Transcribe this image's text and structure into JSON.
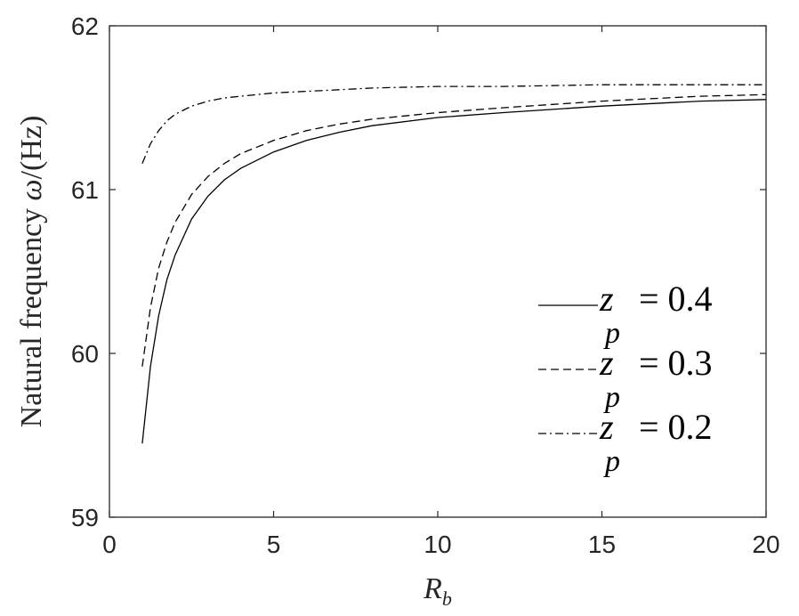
{
  "chart_data": {
    "type": "line",
    "xlabel": "R_b",
    "xlabel_main": "R",
    "xlabel_sub": "b",
    "ylabel": "Natural frequency ω/(Hz)",
    "ylabel_main": "Natural frequency ",
    "ylabel_symbol": "ω",
    "ylabel_unit": "/(Hz)",
    "xlim": [
      0,
      20
    ],
    "ylim": [
      59,
      62
    ],
    "xticks": [
      "0",
      "5",
      "10",
      "15",
      "20"
    ],
    "yticks": [
      "59",
      "60",
      "61",
      "62"
    ],
    "grid": false,
    "legend_position": "right",
    "series": [
      {
        "name": "z_p = 0.4",
        "label_var": "z",
        "label_sub": "p",
        "label_value": "= 0.4",
        "style": "solid",
        "x": [
          1,
          1.25,
          1.5,
          1.75,
          2,
          2.5,
          3,
          3.5,
          4,
          5,
          6,
          7,
          8,
          10,
          12,
          15,
          18,
          20
        ],
        "y": [
          59.45,
          59.92,
          60.23,
          60.45,
          60.6,
          60.82,
          60.96,
          61.06,
          61.13,
          61.23,
          61.3,
          61.35,
          61.39,
          61.44,
          61.47,
          61.51,
          61.54,
          61.55
        ]
      },
      {
        "name": "z_p = 0.3",
        "label_var": "z",
        "label_sub": "p",
        "label_value": "= 0.3",
        "style": "dashed",
        "x": [
          1,
          1.25,
          1.5,
          1.75,
          2,
          2.5,
          3,
          3.5,
          4,
          5,
          6,
          7,
          8,
          10,
          12,
          15,
          18,
          20
        ],
        "y": [
          59.92,
          60.28,
          60.52,
          60.68,
          60.8,
          60.97,
          61.08,
          61.16,
          61.22,
          61.3,
          61.36,
          61.4,
          61.43,
          61.47,
          61.5,
          61.54,
          61.57,
          61.58
        ]
      },
      {
        "name": "z_p = 0.2",
        "label_var": "z",
        "label_sub": "p",
        "label_value": "= 0.2",
        "style": "dashdot",
        "x": [
          1,
          1.25,
          1.5,
          1.75,
          2,
          2.5,
          3,
          3.5,
          4,
          5,
          6,
          7,
          8,
          10,
          12,
          15,
          18,
          20
        ],
        "y": [
          61.16,
          61.28,
          61.36,
          61.42,
          61.46,
          61.51,
          61.54,
          61.56,
          61.57,
          61.59,
          61.6,
          61.61,
          61.62,
          61.63,
          61.63,
          61.64,
          61.64,
          61.64
        ]
      }
    ]
  }
}
